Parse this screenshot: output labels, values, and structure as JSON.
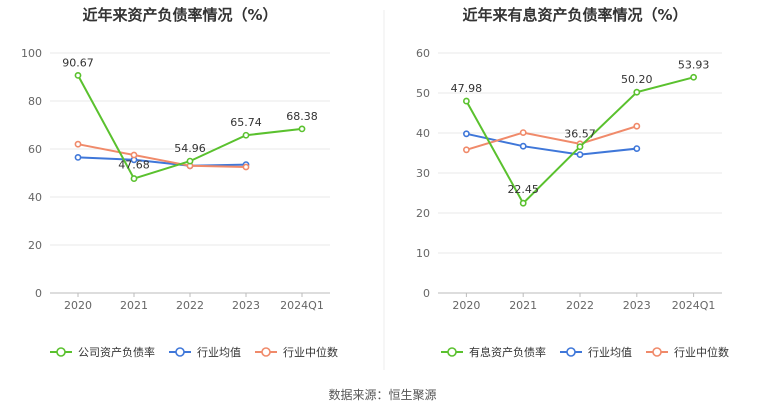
{
  "source_label": "数据来源：恒生聚源",
  "chart_data": [
    {
      "type": "line",
      "title": "近年来资产负债率情况（%）",
      "categories": [
        "2020",
        "2021",
        "2022",
        "2023",
        "2024Q1"
      ],
      "ylim": [
        0,
        100
      ],
      "yticks": [
        "0",
        "20",
        "40",
        "60",
        "80",
        "100"
      ],
      "grid": true,
      "legend_position": "bottom",
      "series": [
        {
          "name": "公司资产负债率",
          "color": "#5ac12e",
          "values": [
            90.67,
            47.68,
            54.96,
            65.74,
            68.38
          ],
          "labels": [
            "90.67",
            "47.68",
            "54.96",
            "65.74",
            "68.38"
          ]
        },
        {
          "name": "行业均值",
          "color": "#3f77d9",
          "values": [
            56.5,
            55.5,
            53.0,
            53.5,
            null
          ]
        },
        {
          "name": "行业中位数",
          "color": "#f08a6a",
          "values": [
            62.0,
            57.5,
            53.0,
            52.5,
            null
          ]
        }
      ]
    },
    {
      "type": "line",
      "title": "近年来有息资产负债率情况（%）",
      "categories": [
        "2020",
        "2021",
        "2022",
        "2023",
        "2024Q1"
      ],
      "ylim": [
        0,
        60
      ],
      "yticks": [
        "0",
        "10",
        "20",
        "30",
        "40",
        "50",
        "60"
      ],
      "grid": true,
      "legend_position": "bottom",
      "series": [
        {
          "name": "有息资产负债率",
          "color": "#5ac12e",
          "values": [
            47.98,
            22.45,
            36.57,
            50.2,
            53.93
          ],
          "labels": [
            "47.98",
            "22.45",
            "36.57",
            "50.20",
            "53.93"
          ]
        },
        {
          "name": "行业均值",
          "color": "#3f77d9",
          "values": [
            39.8,
            36.7,
            34.6,
            36.1,
            null
          ]
        },
        {
          "name": "行业中位数",
          "color": "#f08a6a",
          "values": [
            35.8,
            40.1,
            37.3,
            41.7,
            null
          ]
        }
      ]
    }
  ]
}
